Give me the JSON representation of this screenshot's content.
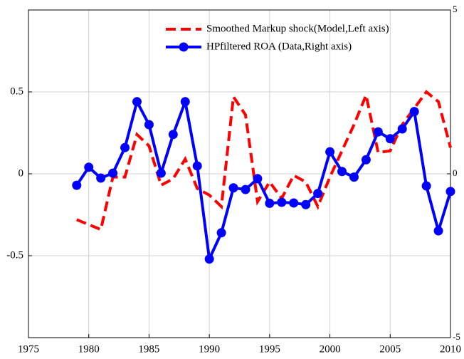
{
  "chart_data": {
    "type": "line",
    "x": [
      1979,
      1980,
      1981,
      1982,
      1983,
      1984,
      1985,
      1986,
      1987,
      1988,
      1989,
      1990,
      1991,
      1992,
      1993,
      1994,
      1995,
      1996,
      1997,
      1998,
      1999,
      2000,
      2001,
      2002,
      2003,
      2004,
      2005,
      2006,
      2007,
      2008,
      2009,
      2010
    ],
    "series": [
      {
        "name": "Smoothed Markup shock(Model,Left axis)",
        "color": "#ff0000",
        "linestyle": "dashed",
        "axis": "y",
        "values": [
          -0.28,
          -0.31,
          -0.34,
          -0.02,
          -0.02,
          0.24,
          0.17,
          -0.07,
          -0.03,
          0.09,
          -0.09,
          -0.13,
          -0.2,
          0.47,
          0.36,
          -0.17,
          -0.05,
          -0.15,
          -0.01,
          -0.05,
          -0.2,
          -0.02,
          0.14,
          0.3,
          0.48,
          0.13,
          0.14,
          0.3,
          0.4,
          0.5,
          0.44,
          0.16
        ]
      },
      {
        "name": "HPfiltered ROA (Data,Right axis)",
        "color": "#0000ff",
        "linestyle": "solid",
        "marker": "o",
        "axis": "y2",
        "values": [
          -0.35,
          0.2,
          -0.13,
          0.02,
          0.8,
          2.2,
          1.5,
          0.02,
          1.2,
          2.2,
          0.24,
          -2.6,
          -1.8,
          -0.43,
          -0.48,
          -0.15,
          -0.9,
          -0.87,
          -0.89,
          -0.94,
          -0.6,
          0.67,
          0.07,
          -0.1,
          0.43,
          1.28,
          1.07,
          1.37,
          1.9,
          -0.37,
          -1.74,
          -0.54
        ]
      }
    ],
    "xlim": [
      1975,
      2010
    ],
    "xticks": [
      1975,
      1980,
      1985,
      1990,
      1995,
      2000,
      2005,
      2010
    ],
    "ylim": [
      -1,
      1
    ],
    "yticks": [
      -0.5,
      0,
      0.5
    ],
    "y2lim": [
      -5,
      5
    ],
    "y2ticks": [
      -5,
      0,
      5
    ],
    "grid": true,
    "legend": "upper right"
  }
}
